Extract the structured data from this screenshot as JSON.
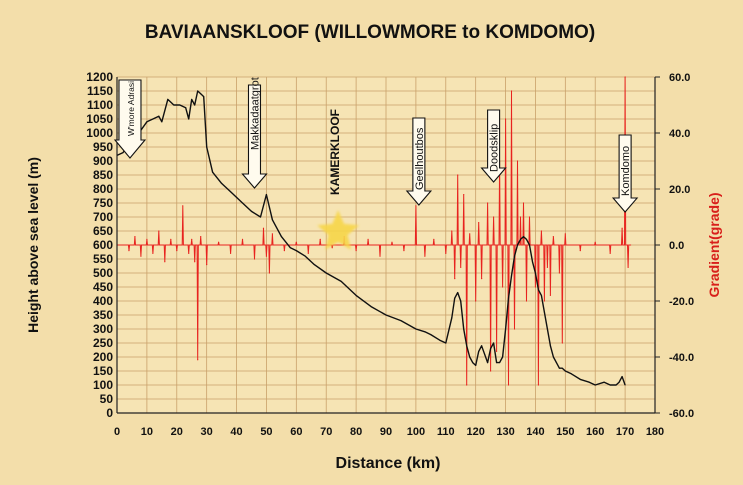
{
  "chart_data": {
    "type": "line",
    "title": "BAVIAANSKLOOF (WILLOWMORE to KOMDOMO)",
    "xlabel": "Distance (km)",
    "ylabel_left": "Height above sea level (m)",
    "ylabel_right": "Gradient(grade)",
    "x_ticks": [
      "0",
      "10",
      "20",
      "30",
      "40",
      "50",
      "60",
      "70",
      "80",
      "90",
      "100",
      "110",
      "120",
      "130",
      "140",
      "150",
      "160",
      "170",
      "180"
    ],
    "y_ticks_left": [
      "0",
      "50",
      "100",
      "150",
      "200",
      "250",
      "300",
      "350",
      "400",
      "450",
      "500",
      "550",
      "600",
      "650",
      "700",
      "750",
      "800",
      "850",
      "900",
      "950",
      "1000",
      "1050",
      "1100",
      "1150",
      "1200"
    ],
    "y_ticks_right": [
      "60.0",
      "40.0",
      "20.0",
      "0.0",
      "-20.0",
      "-40.0",
      "-60.0"
    ],
    "xlim": [
      0,
      180
    ],
    "ylim_left": [
      0,
      1200
    ],
    "ylim_right": [
      -60,
      60
    ],
    "grid": true,
    "colors": {
      "background": "#f3deaa",
      "plot": "#f6e4b4",
      "grid": "#c9a06a",
      "elevation": "#111111",
      "gradient": "#e8231f"
    },
    "series": [
      {
        "axis": "left",
        "color": "#111111",
        "x": [
          0,
          2,
          4,
          6,
          8,
          10,
          12,
          14,
          15,
          17,
          19,
          21,
          23,
          24,
          25,
          26,
          27,
          28,
          29,
          30,
          32,
          35,
          38,
          42,
          45,
          48,
          50,
          52,
          55,
          58,
          60,
          63,
          66,
          70,
          75,
          80,
          85,
          90,
          95,
          100,
          103,
          105,
          108,
          110,
          112,
          113,
          114,
          115,
          116,
          117,
          118,
          119,
          120,
          121,
          122,
          123,
          124,
          125,
          126,
          127,
          128,
          129,
          130,
          131,
          132,
          133,
          134,
          135,
          136,
          137,
          138,
          139,
          140,
          141,
          142,
          143,
          144,
          145,
          146,
          147,
          148,
          149,
          150,
          152,
          155,
          158,
          160,
          163,
          165,
          167,
          168,
          169,
          170
        ],
        "y": [
          920,
          930,
          960,
          1000,
          1010,
          1040,
          1050,
          1060,
          1040,
          1120,
          1100,
          1100,
          1090,
          1050,
          1120,
          1100,
          1150,
          1140,
          1130,
          950,
          860,
          820,
          790,
          750,
          720,
          700,
          780,
          690,
          630,
          590,
          580,
          560,
          530,
          500,
          470,
          420,
          380,
          350,
          330,
          300,
          290,
          280,
          260,
          250,
          340,
          410,
          430,
          400,
          300,
          240,
          200,
          180,
          170,
          220,
          240,
          210,
          180,
          230,
          250,
          180,
          180,
          200,
          300,
          410,
          490,
          560,
          600,
          620,
          630,
          620,
          600,
          540,
          500,
          440,
          420,
          360,
          300,
          240,
          200,
          180,
          160,
          160,
          150,
          140,
          120,
          110,
          100,
          110,
          100,
          100,
          110,
          130,
          100
        ]
      },
      {
        "axis": "right",
        "color": "#e8231f",
        "x": [
          4,
          6,
          8,
          10,
          12,
          14,
          16,
          18,
          20,
          22,
          24,
          25,
          26,
          27,
          28,
          30,
          34,
          38,
          42,
          46,
          49,
          50,
          51,
          52,
          56,
          60,
          64,
          68,
          72,
          76,
          80,
          84,
          88,
          92,
          96,
          100,
          103,
          106,
          110,
          112,
          113,
          114,
          115,
          116,
          117,
          118,
          120,
          121,
          122,
          124,
          125,
          126,
          127,
          128,
          129,
          130,
          131,
          132,
          133,
          134,
          135,
          136,
          137,
          138,
          140,
          141,
          142,
          143,
          144,
          145,
          146,
          148,
          149,
          150,
          155,
          160,
          165,
          169,
          170,
          171
        ],
        "y": [
          -2,
          3,
          -4,
          2,
          -3,
          5,
          -6,
          2,
          -2,
          14,
          -3,
          2,
          -6,
          -41,
          3,
          -7,
          1,
          -3,
          2,
          -5,
          6,
          -4,
          -10,
          4,
          -2,
          1,
          -3,
          2,
          -1,
          3,
          -2,
          2,
          -4,
          1,
          -2,
          14,
          -4,
          2,
          -3,
          5,
          -12,
          25,
          -8,
          18,
          -50,
          4,
          -20,
          8,
          -12,
          15,
          -45,
          10,
          -38,
          30,
          -15,
          45,
          -50,
          55,
          -30,
          30,
          10,
          15,
          -20,
          10,
          -15,
          -50,
          5,
          -20,
          -8,
          -18,
          3,
          -10,
          -35,
          4,
          -2,
          1,
          -3,
          6,
          60,
          -8
        ]
      }
    ],
    "annotations": [
      {
        "label": "W'more Adrasi",
        "x": 2
      },
      {
        "label": "Makkadaatgrot",
        "x": 46
      },
      {
        "label": "KAMERKLOOF",
        "x": 78
      },
      {
        "label": "Geelhoutbos",
        "x": 101
      },
      {
        "label": "Doodsklip",
        "x": 126
      },
      {
        "label": "Komdomo",
        "x": 170
      }
    ]
  }
}
